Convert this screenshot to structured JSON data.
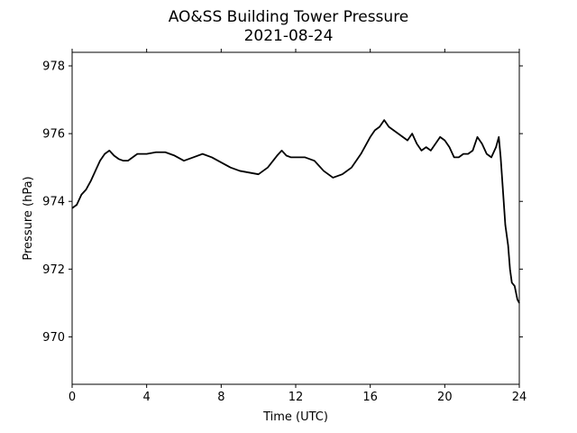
{
  "chart_data": {
    "type": "line",
    "title": "AO&SS Building Tower Pressure",
    "subtitle": "2021-08-24",
    "xlabel": "Time (UTC)",
    "ylabel": "Pressure (hPa)",
    "xlim": [
      0,
      24
    ],
    "ylim": [
      968.6,
      978.4
    ],
    "xticks": [
      0,
      4,
      8,
      12,
      16,
      20,
      24
    ],
    "yticks": [
      970,
      972,
      974,
      976,
      978
    ],
    "grid": false,
    "series": [
      {
        "color": "#000000",
        "x": [
          0,
          0.25,
          0.5,
          0.75,
          1.0,
          1.25,
          1.5,
          1.75,
          2.0,
          2.25,
          2.5,
          2.75,
          3.0,
          3.25,
          3.5,
          3.75,
          4.0,
          4.5,
          5.0,
          5.5,
          6.0,
          6.5,
          7.0,
          7.5,
          8.0,
          8.5,
          9.0,
          9.5,
          10.0,
          10.5,
          11.0,
          11.25,
          11.5,
          11.75,
          12.0,
          12.25,
          12.5,
          13.0,
          13.5,
          14.0,
          14.5,
          15.0,
          15.5,
          16.0,
          16.25,
          16.5,
          16.75,
          17.0,
          17.5,
          18.0,
          18.25,
          18.5,
          18.75,
          19.0,
          19.25,
          19.5,
          19.75,
          20.0,
          20.25,
          20.5,
          20.75,
          21.0,
          21.25,
          21.5,
          21.75,
          22.0,
          22.25,
          22.5,
          22.75,
          22.9,
          23.0,
          23.1,
          23.25,
          23.4,
          23.5,
          23.6,
          23.75,
          23.9,
          24.0
        ],
        "y": [
          973.8,
          973.9,
          974.2,
          974.35,
          974.6,
          974.9,
          975.2,
          975.4,
          975.5,
          975.35,
          975.25,
          975.2,
          975.2,
          975.3,
          975.4,
          975.4,
          975.4,
          975.45,
          975.45,
          975.35,
          975.2,
          975.3,
          975.4,
          975.3,
          975.15,
          975.0,
          974.9,
          974.85,
          974.8,
          975.0,
          975.35,
          975.5,
          975.35,
          975.3,
          975.3,
          975.3,
          975.3,
          975.2,
          974.9,
          974.7,
          974.8,
          975.0,
          975.4,
          975.9,
          976.1,
          976.2,
          976.4,
          976.2,
          976.0,
          975.8,
          976.0,
          975.7,
          975.5,
          975.6,
          975.5,
          975.7,
          975.9,
          975.8,
          975.6,
          975.3,
          975.3,
          975.4,
          975.4,
          975.5,
          975.9,
          975.7,
          975.4,
          975.3,
          975.6,
          975.9,
          975.3,
          974.5,
          973.3,
          972.7,
          972.0,
          971.6,
          971.5,
          971.1,
          971.0
        ]
      }
    ]
  }
}
